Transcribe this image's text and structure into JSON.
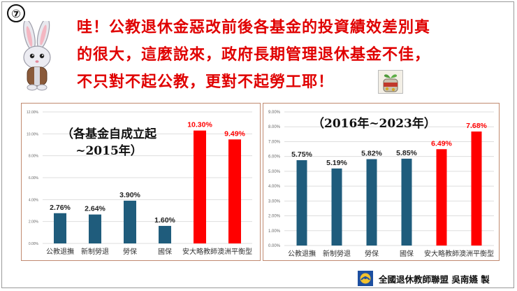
{
  "badge": "⑦",
  "headline": {
    "line1": "哇！公教退休金惡改前後各基金的投資績效差別真",
    "line2": "的很大，這麼說來，政府長期管理退休基金不佳，",
    "line3": "不只對不起公教，更對不起勞工耶！"
  },
  "icons": {
    "mascot": "rabbit-mascot-icon",
    "jar": "pension-jar-icon",
    "logo": "union-logo-icon"
  },
  "colors": {
    "headline": "#e00000",
    "bar_blue": "#1f5c7c",
    "bar_red": "#ff0000",
    "frame": "#c08a70"
  },
  "footer": {
    "text": "全國退休教師聯盟 吳南嬿 製"
  },
  "chart_data": [
    {
      "type": "bar",
      "title": "（各基金自成立起~2015年）",
      "title_line1": "（各基金自成立起",
      "title_line2": "~2015年）",
      "categories": [
        "公教退撫",
        "新制勞退",
        "勞保",
        "國保",
        "安大略教師",
        "澳洲平衡型"
      ],
      "values": [
        2.76,
        2.64,
        3.9,
        1.6,
        10.3,
        9.49
      ],
      "value_labels": [
        "2.76%",
        "2.64%",
        "3.90%",
        "1.60%",
        "10.30%",
        "9.49%"
      ],
      "bar_colors": [
        "#1f5c7c",
        "#1f5c7c",
        "#1f5c7c",
        "#1f5c7c",
        "#ff0000",
        "#ff0000"
      ],
      "ylim": [
        0,
        12
      ],
      "yticks": [
        0,
        2,
        4,
        6,
        8,
        10,
        12
      ],
      "ytick_labels": [
        "0.00%",
        "2.00%",
        "4.00%",
        "6.00%",
        "8.00%",
        "10.00%",
        "12.00%"
      ],
      "xlabel": "",
      "ylabel": "",
      "grid": true
    },
    {
      "type": "bar",
      "title": "（2016年~2023年）",
      "categories": [
        "公教退撫",
        "新制勞退",
        "勞保",
        "國保",
        "安大略教師",
        "澳洲平衡型"
      ],
      "values": [
        5.75,
        5.19,
        5.82,
        5.85,
        6.49,
        7.68
      ],
      "value_labels": [
        "5.75%",
        "5.19%",
        "5.82%",
        "5.85%",
        "6.49%",
        "7.68%"
      ],
      "bar_colors": [
        "#1f5c7c",
        "#1f5c7c",
        "#1f5c7c",
        "#1f5c7c",
        "#ff0000",
        "#ff0000"
      ],
      "ylim": [
        0,
        9
      ],
      "yticks": [
        0,
        1,
        2,
        3,
        4,
        5,
        6,
        7,
        8,
        9
      ],
      "ytick_labels": [
        "0.00%",
        "1.00%",
        "2.00%",
        "3.00%",
        "4.00%",
        "5.00%",
        "6.00%",
        "7.00%",
        "8.00%",
        "9.00%"
      ],
      "xlabel": "",
      "ylabel": "",
      "grid": true
    }
  ]
}
